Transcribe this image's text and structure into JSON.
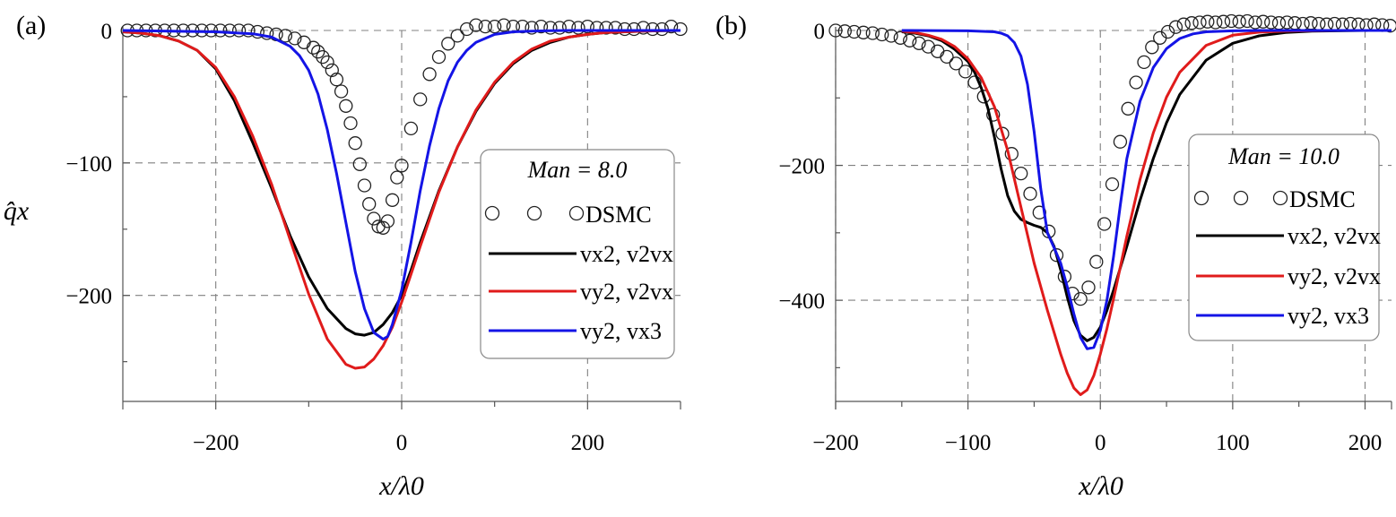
{
  "y_axis_label": "q̂x",
  "x_axis_label": "x/λ0",
  "legend_entries": {
    "dsmc": "DSMC",
    "vx2_v2vx": "vx2, v2vx",
    "vy2_v2vx": "vy2, v2vx",
    "vy2_vx3": "vy2, vx3"
  },
  "colors": {
    "vx2_v2vx": "#000000",
    "vy2_v2vx": "#e01b1b",
    "vy2_vx3": "#1414e6",
    "dsmc": "#222222"
  },
  "chart_data": [
    {
      "panel": "(a)",
      "type": "line",
      "annotation": "Man = 8.0",
      "xlabel": "x/λ0",
      "ylabel": "q̂x",
      "xlim": [
        -300,
        300
      ],
      "ylim": [
        -280,
        0
      ],
      "xticks": [
        -200,
        0,
        200
      ],
      "yticks": [
        0,
        -100,
        -200
      ],
      "grid": true,
      "legend_position": "right",
      "series": [
        {
          "name": "DSMC",
          "style": "markers",
          "x": [
            -295,
            -285,
            -275,
            -265,
            -255,
            -245,
            -235,
            -225,
            -215,
            -205,
            -195,
            -185,
            -175,
            -165,
            -155,
            -145,
            -135,
            -125,
            -115,
            -105,
            -95,
            -90,
            -85,
            -80,
            -75,
            -70,
            -65,
            -60,
            -55,
            -50,
            -45,
            -40,
            -35,
            -30,
            -25,
            -20,
            -15,
            -10,
            -5,
            0,
            10,
            20,
            30,
            40,
            50,
            60,
            70,
            80,
            90,
            100,
            110,
            120,
            130,
            140,
            150,
            160,
            170,
            180,
            190,
            200,
            210,
            220,
            230,
            240,
            250,
            260,
            270,
            280,
            290,
            300
          ],
          "y": [
            0,
            0,
            0,
            0,
            0,
            0,
            0,
            0,
            0,
            0,
            0,
            0,
            0,
            0,
            -1,
            -2,
            -3,
            -4,
            -6,
            -9,
            -13,
            -16,
            -20,
            -24,
            -30,
            -37,
            -46,
            -57,
            -70,
            -85,
            -101,
            -117,
            -131,
            -142,
            -148,
            -149,
            -144,
            -128,
            -111,
            -102,
            -74,
            -52,
            -33,
            -20,
            -10,
            -4,
            1,
            4,
            3,
            3,
            4,
            3,
            3,
            2,
            3,
            2,
            2,
            3,
            2,
            3,
            2,
            2,
            2,
            1,
            1,
            2,
            1,
            1,
            3,
            1
          ]
        },
        {
          "name": "vx2, v2vx",
          "style": "line",
          "color": "#000000",
          "x": [
            -300,
            -280,
            -260,
            -240,
            -220,
            -200,
            -180,
            -160,
            -140,
            -120,
            -100,
            -80,
            -60,
            -50,
            -40,
            -30,
            -20,
            -10,
            0,
            10,
            20,
            40,
            60,
            80,
            100,
            120,
            140,
            160,
            180,
            200,
            220,
            240,
            260,
            280,
            300
          ],
          "y": [
            -1,
            -2,
            -4,
            -8,
            -15,
            -29,
            -53,
            -85,
            -119,
            -155,
            -186,
            -210,
            -225,
            -229,
            -230,
            -228,
            -222,
            -213,
            -200,
            -181,
            -160,
            -121,
            -88,
            -61,
            -40,
            -25,
            -15,
            -9,
            -5,
            -3,
            -1.5,
            -1,
            -0.5,
            -0.2,
            0
          ]
        },
        {
          "name": "vy2, v2vx",
          "style": "line",
          "color": "#e01b1b",
          "x": [
            -300,
            -280,
            -260,
            -240,
            -220,
            -200,
            -180,
            -160,
            -140,
            -120,
            -100,
            -80,
            -60,
            -50,
            -40,
            -30,
            -20,
            -10,
            0,
            10,
            20,
            40,
            60,
            80,
            100,
            120,
            140,
            160,
            180,
            200,
            220,
            240,
            260,
            280,
            300
          ],
          "y": [
            -1,
            -2,
            -4,
            -8,
            -15,
            -28,
            -50,
            -80,
            -116,
            -158,
            -199,
            -233,
            -252,
            -255,
            -254,
            -248,
            -238,
            -224,
            -205,
            -184,
            -163,
            -122,
            -88,
            -60,
            -39,
            -24,
            -14,
            -8,
            -5,
            -3,
            -1.5,
            -1,
            -0.5,
            -0.2,
            0
          ]
        },
        {
          "name": "vy2, vx3",
          "style": "line",
          "color": "#1414e6",
          "x": [
            -300,
            -250,
            -200,
            -160,
            -140,
            -120,
            -110,
            -100,
            -90,
            -80,
            -70,
            -60,
            -50,
            -40,
            -30,
            -20,
            -15,
            -10,
            0,
            10,
            20,
            30,
            40,
            50,
            60,
            70,
            80,
            100,
            120,
            140,
            160,
            180,
            200,
            220,
            240,
            260,
            280,
            300
          ],
          "y": [
            0,
            -0.5,
            -1,
            -2.5,
            -5,
            -12,
            -19,
            -30,
            -48,
            -75,
            -108,
            -145,
            -182,
            -210,
            -228,
            -233,
            -231,
            -222,
            -196,
            -160,
            -121,
            -87,
            -59,
            -38,
            -24,
            -15,
            -9,
            -3,
            -1,
            -0.5,
            -0.2,
            0,
            0,
            0,
            0,
            0,
            0,
            0
          ]
        }
      ]
    },
    {
      "panel": "(b)",
      "type": "line",
      "annotation": "Man = 10.0",
      "xlabel": "x/λ0",
      "ylabel": "",
      "xlim": [
        -200,
        220
      ],
      "ylim": [
        -550,
        0
      ],
      "xticks": [
        -200,
        -100,
        0,
        100,
        200
      ],
      "yticks": [
        0,
        -200,
        -400
      ],
      "grid": true,
      "legend_position": "right",
      "series": [
        {
          "name": "DSMC",
          "style": "markers",
          "x": [
            -200,
            -193,
            -186,
            -179,
            -172,
            -165,
            -158,
            -151,
            -144,
            -137,
            -130,
            -123,
            -116,
            -109,
            -102,
            -95,
            -88,
            -81,
            -74,
            -67,
            -60,
            -53,
            -46,
            -39,
            -33,
            -27,
            -21,
            -15,
            -9,
            -3,
            3,
            9,
            15,
            21,
            27,
            33,
            39,
            45,
            51,
            57,
            63,
            69,
            75,
            81,
            87,
            93,
            99,
            105,
            111,
            117,
            123,
            129,
            135,
            141,
            147,
            153,
            159,
            165,
            171,
            177,
            183,
            189,
            195,
            201,
            207,
            213,
            219
          ],
          "y": [
            0,
            -1,
            -2,
            -3,
            -4,
            -6,
            -8,
            -11,
            -15,
            -19,
            -24,
            -31,
            -39,
            -49,
            -61,
            -77,
            -98,
            -125,
            -153,
            -183,
            -212,
            -242,
            -270,
            -298,
            -333,
            -365,
            -390,
            -398,
            -381,
            -343,
            -287,
            -228,
            -165,
            -116,
            -77,
            -47,
            -25,
            -11,
            -2,
            5,
            9,
            11,
            12,
            13,
            12,
            13,
            14,
            13,
            14,
            12,
            13,
            12,
            11,
            12,
            11,
            10,
            11,
            10,
            9,
            10,
            9,
            10,
            9,
            8,
            9,
            8,
            7
          ]
        },
        {
          "name": "vx2, v2vx",
          "style": "line",
          "color": "#000000",
          "x": [
            -150,
            -140,
            -130,
            -120,
            -110,
            -100,
            -95,
            -90,
            -85,
            -80,
            -75,
            -70,
            -65,
            -60,
            -55,
            -50,
            -45,
            -40,
            -35,
            -30,
            -25,
            -20,
            -15,
            -10,
            -5,
            0,
            5,
            10,
            20,
            30,
            40,
            50,
            60,
            80,
            100,
            120,
            140,
            160,
            180,
            200,
            220
          ],
          "y": [
            -2,
            -4,
            -8,
            -15,
            -28,
            -46,
            -62,
            -85,
            -115,
            -158,
            -205,
            -245,
            -268,
            -280,
            -285,
            -289,
            -292,
            -300,
            -320,
            -355,
            -395,
            -430,
            -452,
            -460,
            -455,
            -440,
            -415,
            -385,
            -320,
            -252,
            -190,
            -137,
            -95,
            -44,
            -19,
            -8,
            -3,
            -1,
            -0.5,
            0,
            0
          ]
        },
        {
          "name": "vy2, v2vx",
          "style": "line",
          "color": "#e01b1b",
          "x": [
            -150,
            -140,
            -130,
            -120,
            -110,
            -100,
            -90,
            -80,
            -70,
            -60,
            -50,
            -40,
            -30,
            -25,
            -20,
            -15,
            -10,
            -5,
            0,
            5,
            10,
            20,
            30,
            40,
            50,
            60,
            80,
            100,
            120,
            140,
            160,
            180,
            200,
            220
          ],
          "y": [
            -1,
            -3,
            -7,
            -13,
            -24,
            -42,
            -70,
            -113,
            -178,
            -262,
            -345,
            -415,
            -480,
            -508,
            -530,
            -540,
            -533,
            -512,
            -480,
            -442,
            -398,
            -305,
            -221,
            -152,
            -99,
            -62,
            -22,
            -7,
            -2.5,
            -1,
            -0.3,
            0,
            0,
            0
          ]
        },
        {
          "name": "vy2, vx3",
          "style": "line",
          "color": "#1414e6",
          "x": [
            -150,
            -100,
            -80,
            -75,
            -70,
            -65,
            -60,
            -55,
            -50,
            -45,
            -40,
            -35,
            -30,
            -25,
            -20,
            -15,
            -10,
            -5,
            0,
            5,
            10,
            15,
            20,
            30,
            40,
            50,
            60,
            70,
            80,
            100,
            120,
            140,
            160,
            180,
            200,
            220
          ],
          "y": [
            0,
            -0.5,
            -2,
            -4,
            -8,
            -18,
            -38,
            -80,
            -150,
            -235,
            -300,
            -322,
            -345,
            -380,
            -420,
            -455,
            -472,
            -470,
            -445,
            -400,
            -335,
            -260,
            -190,
            -105,
            -55,
            -27,
            -12,
            -5,
            -2,
            -0.5,
            0,
            0,
            0,
            0,
            0,
            0
          ]
        }
      ]
    }
  ]
}
